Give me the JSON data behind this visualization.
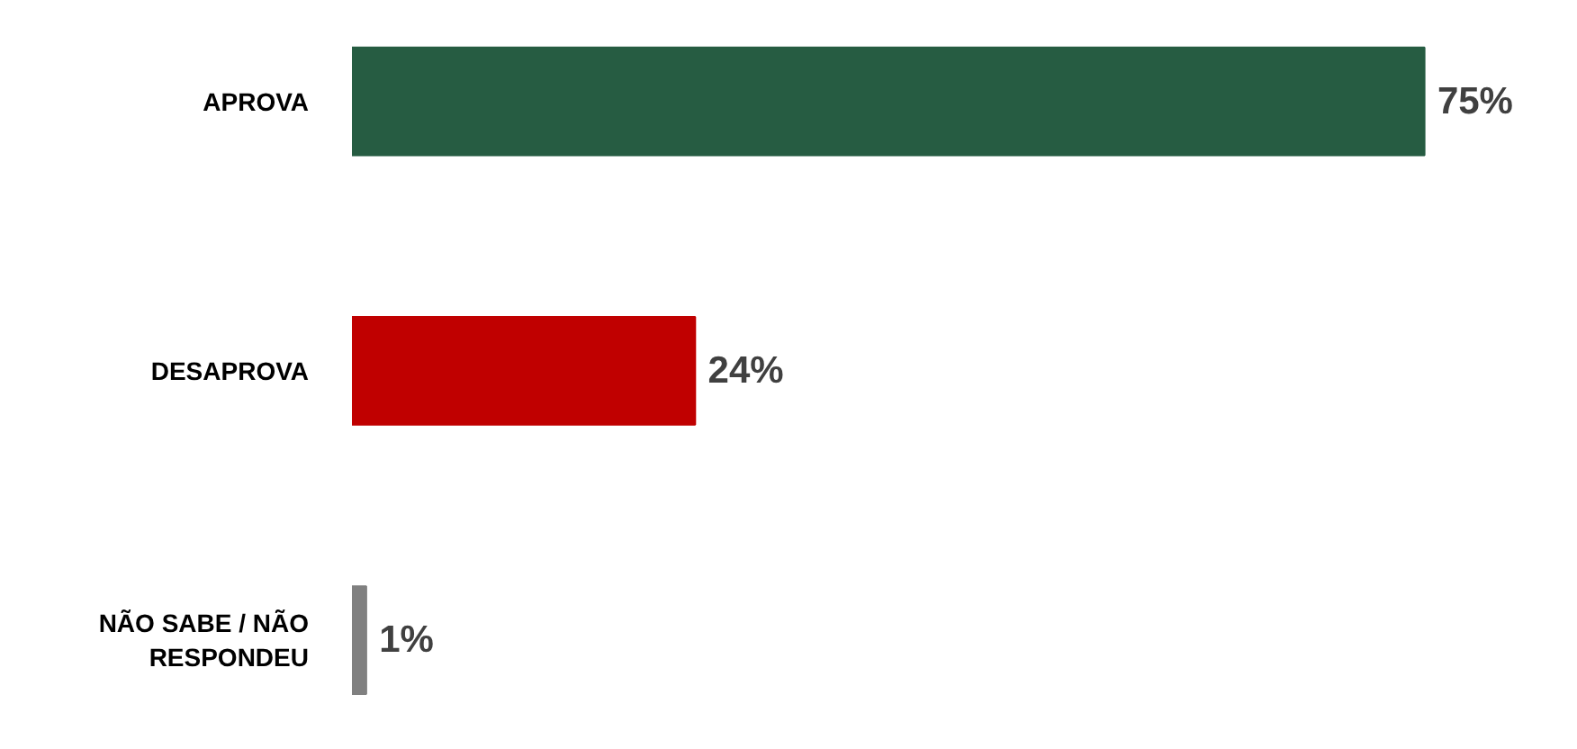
{
  "chart_data": {
    "type": "bar",
    "orientation": "horizontal",
    "categories": [
      "APROVA",
      "DESAPROVA",
      "NÃO SABE / NÃO RESPONDEU"
    ],
    "values": [
      75,
      24,
      1
    ],
    "colors": [
      "#265c42",
      "#c00000",
      "#808080"
    ],
    "data_labels": true,
    "value_labels": [
      "75%",
      "24%",
      "1%"
    ],
    "grid": false,
    "tick_labels": "y"
  }
}
